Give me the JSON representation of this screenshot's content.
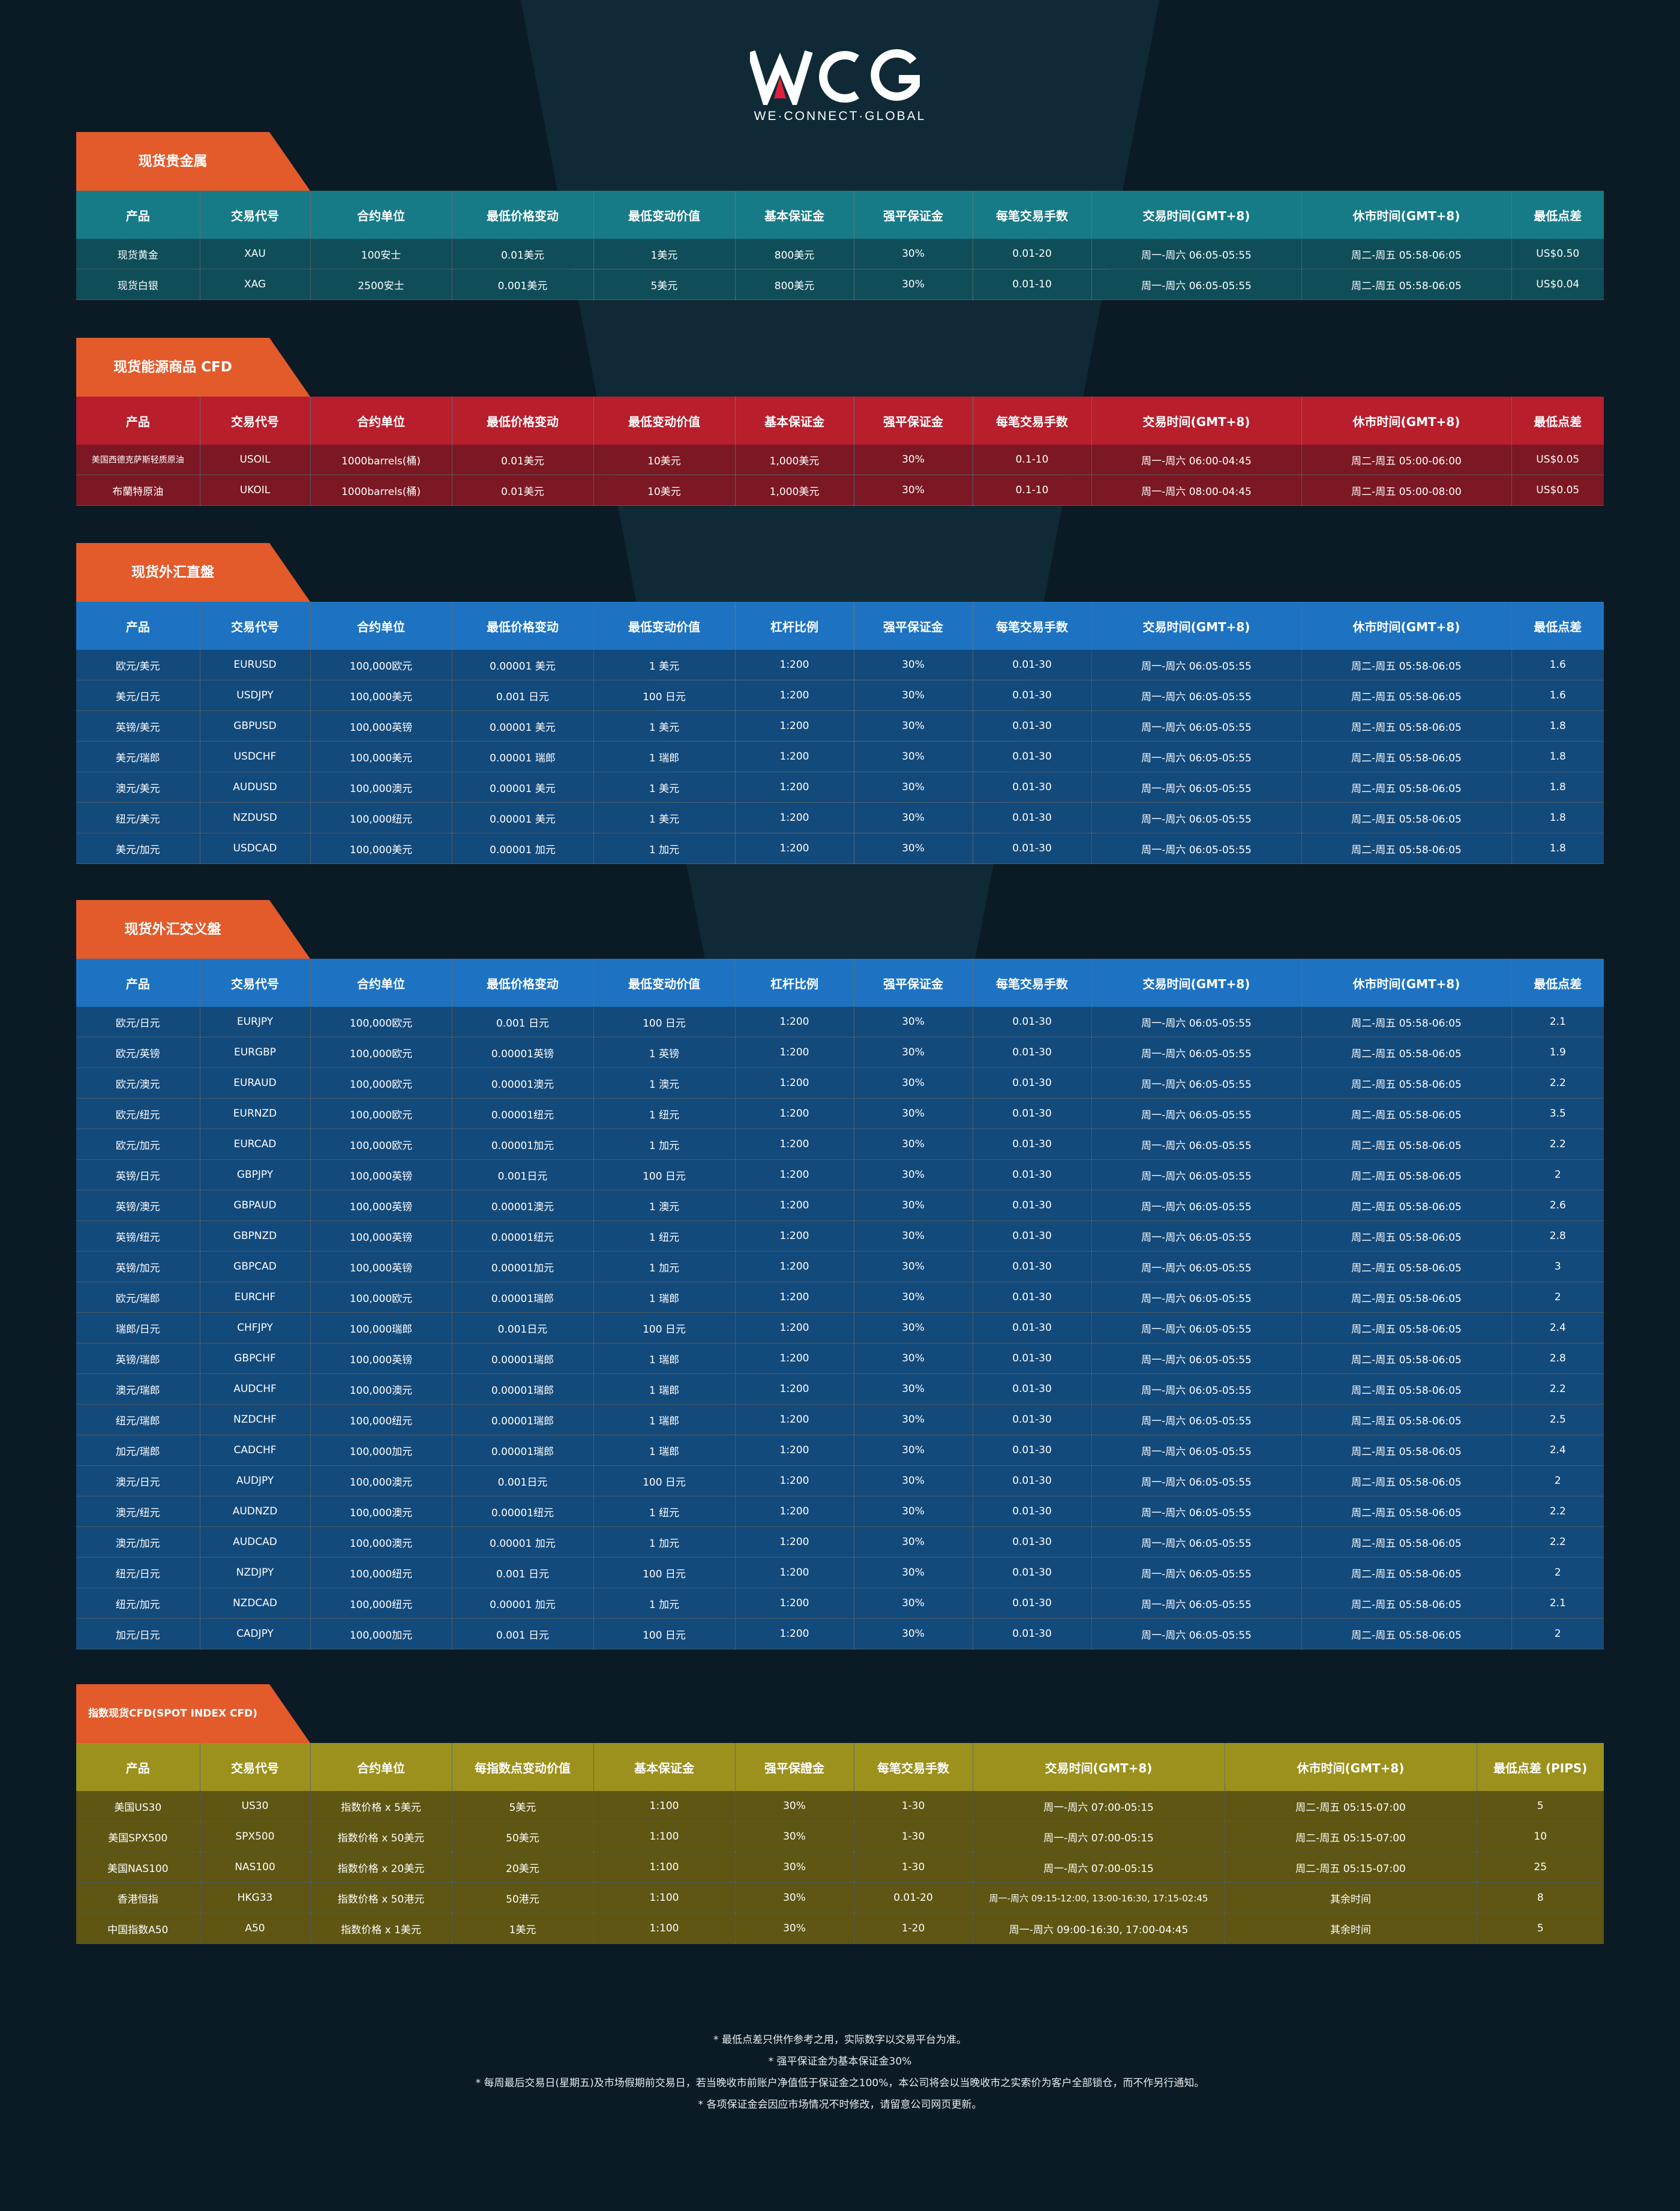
{
  "brand": {
    "logo_text": "WE·CONNECT·GLOBAL",
    "logo_icon": "wcg-logo",
    "colors": {
      "background": "#0b1b25",
      "tag": "#e35a2b",
      "gold_header": "#167b87",
      "energy_header": "#b81e2c",
      "fx_header": "#1d73c2",
      "index_header": "#9c911c"
    }
  },
  "sections": [
    {
      "key": "gold",
      "title": "现货贵金属",
      "headers": [
        "产品",
        "交易代号",
        "合约单位",
        "最低价格变动",
        "最低变动价值",
        "基本保证金",
        "强平保证金",
        "每笔交易手数",
        "交易时间(GMT+8)",
        "休市时间(GMT+8)",
        "最低点差"
      ],
      "rows": [
        [
          "现货黄金",
          "XAU",
          "100安士",
          "0.01美元",
          "1美元",
          "800美元",
          "30%",
          "0.01-20",
          "周一-周六 06:05-05:55",
          "周二-周五 05:58-06:05",
          "US$0.50"
        ],
        [
          "现货白银",
          "XAG",
          "2500安士",
          "0.001美元",
          "5美元",
          "800美元",
          "30%",
          "0.01-10",
          "周一-周六 06:05-05:55",
          "周二-周五 05:58-06:05",
          "US$0.04"
        ]
      ]
    },
    {
      "key": "energy",
      "title": "现货能源商品 CFD",
      "headers": [
        "产品",
        "交易代号",
        "合约单位",
        "最低价格变动",
        "最低变动价值",
        "基本保证金",
        "强平保证金",
        "每笔交易手数",
        "交易时间(GMT+8)",
        "休市时间(GMT+8)",
        "最低点差"
      ],
      "rows": [
        [
          "美国西德克萨斯轻质原油",
          "USOIL",
          "1000barrels(桶)",
          "0.01美元",
          "10美元",
          "1,000美元",
          "30%",
          "0.1-10",
          "周一-周六 06:00-04:45",
          "周二-周五 05:00-06:00",
          "US$0.05"
        ],
        [
          "布蘭特原油",
          "UKOIL",
          "1000barrels(桶)",
          "0.01美元",
          "10美元",
          "1,000美元",
          "30%",
          "0.1-10",
          "周一-周六 08:00-04:45",
          "周二-周五 05:00-08:00",
          "US$0.05"
        ]
      ]
    },
    {
      "key": "fx",
      "title": "现货外汇直盤",
      "headers": [
        "产品",
        "交易代号",
        "合约单位",
        "最低价格变动",
        "最低变动价值",
        "杠杆比例",
        "强平保证金",
        "每笔交易手数",
        "交易时间(GMT+8)",
        "休市时间(GMT+8)",
        "最低点差"
      ],
      "rows": [
        [
          "欧元/美元",
          "EURUSD",
          "100,000欧元",
          "0.00001 美元",
          "1 美元",
          "1:200",
          "30%",
          "0.01-30",
          "周一-周六 06:05-05:55",
          "周二-周五 05:58-06:05",
          "1.6"
        ],
        [
          "美元/日元",
          "USDJPY",
          "100,000美元",
          "0.001 日元",
          "100 日元",
          "1:200",
          "30%",
          "0.01-30",
          "周一-周六 06:05-05:55",
          "周二-周五 05:58-06:05",
          "1.6"
        ],
        [
          "英镑/美元",
          "GBPUSD",
          "100,000英镑",
          "0.00001 美元",
          "1 美元",
          "1:200",
          "30%",
          "0.01-30",
          "周一-周六 06:05-05:55",
          "周二-周五 05:58-06:05",
          "1.8"
        ],
        [
          "美元/瑞郎",
          "USDCHF",
          "100,000美元",
          "0.00001 瑞郎",
          "1 瑞郎",
          "1:200",
          "30%",
          "0.01-30",
          "周一-周六 06:05-05:55",
          "周二-周五 05:58-06:05",
          "1.8"
        ],
        [
          "澳元/美元",
          "AUDUSD",
          "100,000澳元",
          "0.00001 美元",
          "1 美元",
          "1:200",
          "30%",
          "0.01-30",
          "周一-周六 06:05-05:55",
          "周二-周五 05:58-06:05",
          "1.8"
        ],
        [
          "纽元/美元",
          "NZDUSD",
          "100,000纽元",
          "0.00001 美元",
          "1 美元",
          "1:200",
          "30%",
          "0.01-30",
          "周一-周六 06:05-05:55",
          "周二-周五 05:58-06:05",
          "1.8"
        ],
        [
          "美元/加元",
          "USDCAD",
          "100,000美元",
          "0.00001 加元",
          "1 加元",
          "1:200",
          "30%",
          "0.01-30",
          "周一-周六 06:05-05:55",
          "周二-周五 05:58-06:05",
          "1.8"
        ]
      ]
    },
    {
      "key": "fx",
      "title": "现货外汇交义盤",
      "headers": [
        "产品",
        "交易代号",
        "合约单位",
        "最低价格变动",
        "最低变动价值",
        "杠杆比例",
        "强平保证金",
        "每笔交易手数",
        "交易时间(GMT+8)",
        "休市时间(GMT+8)",
        "最低点差"
      ],
      "rows": [
        [
          "欧元/日元",
          "EURJPY",
          "100,000欧元",
          "0.001 日元",
          "100 日元",
          "1:200",
          "30%",
          "0.01-30",
          "周一-周六 06:05-05:55",
          "周二-周五 05:58-06:05",
          "2.1"
        ],
        [
          "欧元/英镑",
          "EURGBP",
          "100,000欧元",
          "0.00001英镑",
          "1 英镑",
          "1:200",
          "30%",
          "0.01-30",
          "周一-周六 06:05-05:55",
          "周二-周五 05:58-06:05",
          "1.9"
        ],
        [
          "欧元/澳元",
          "EURAUD",
          "100,000欧元",
          "0.00001澳元",
          "1 澳元",
          "1:200",
          "30%",
          "0.01-30",
          "周一-周六 06:05-05:55",
          "周二-周五 05:58-06:05",
          "2.2"
        ],
        [
          "欧元/纽元",
          "EURNZD",
          "100,000欧元",
          "0.00001纽元",
          "1 纽元",
          "1:200",
          "30%",
          "0.01-30",
          "周一-周六 06:05-05:55",
          "周二-周五 05:58-06:05",
          "3.5"
        ],
        [
          "欧元/加元",
          "EURCAD",
          "100,000欧元",
          "0.00001加元",
          "1 加元",
          "1:200",
          "30%",
          "0.01-30",
          "周一-周六 06:05-05:55",
          "周二-周五 05:58-06:05",
          "2.2"
        ],
        [
          "英镑/日元",
          "GBPJPY",
          "100,000英镑",
          "0.001日元",
          "100 日元",
          "1:200",
          "30%",
          "0.01-30",
          "周一-周六 06:05-05:55",
          "周二-周五 05:58-06:05",
          "2"
        ],
        [
          "英镑/澳元",
          "GBPAUD",
          "100,000英镑",
          "0.00001澳元",
          "1 澳元",
          "1:200",
          "30%",
          "0.01-30",
          "周一-周六 06:05-05:55",
          "周二-周五 05:58-06:05",
          "2.6"
        ],
        [
          "英镑/纽元",
          "GBPNZD",
          "100,000英镑",
          "0.00001纽元",
          "1 纽元",
          "1:200",
          "30%",
          "0.01-30",
          "周一-周六 06:05-05:55",
          "周二-周五 05:58-06:05",
          "2.8"
        ],
        [
          "英镑/加元",
          "GBPCAD",
          "100,000英镑",
          "0.00001加元",
          "1 加元",
          "1:200",
          "30%",
          "0.01-30",
          "周一-周六 06:05-05:55",
          "周二-周五 05:58-06:05",
          "3"
        ],
        [
          "欧元/瑞郎",
          "EURCHF",
          "100,000欧元",
          "0.00001瑞郎",
          "1 瑞郎",
          "1:200",
          "30%",
          "0.01-30",
          "周一-周六 06:05-05:55",
          "周二-周五 05:58-06:05",
          "2"
        ],
        [
          "瑞郎/日元",
          "CHFJPY",
          "100,000瑞郎",
          "0.001日元",
          "100 日元",
          "1:200",
          "30%",
          "0.01-30",
          "周一-周六 06:05-05:55",
          "周二-周五 05:58-06:05",
          "2.4"
        ],
        [
          "英镑/瑞郎",
          "GBPCHF",
          "100,000英镑",
          "0.00001瑞郎",
          "1 瑞郎",
          "1:200",
          "30%",
          "0.01-30",
          "周一-周六 06:05-05:55",
          "周二-周五 05:58-06:05",
          "2.8"
        ],
        [
          "澳元/瑞郎",
          "AUDCHF",
          "100,000澳元",
          "0.00001瑞郎",
          "1 瑞郎",
          "1:200",
          "30%",
          "0.01-30",
          "周一-周六 06:05-05:55",
          "周二-周五 05:58-06:05",
          "2.2"
        ],
        [
          "纽元/瑞郎",
          "NZDCHF",
          "100,000纽元",
          "0.00001瑞郎",
          "1 瑞郎",
          "1:200",
          "30%",
          "0.01-30",
          "周一-周六 06:05-05:55",
          "周二-周五 05:58-06:05",
          "2.5"
        ],
        [
          "加元/瑞郎",
          "CADCHF",
          "100,000加元",
          "0.00001瑞郎",
          "1 瑞郎",
          "1:200",
          "30%",
          "0.01-30",
          "周一-周六 06:05-05:55",
          "周二-周五 05:58-06:05",
          "2.4"
        ],
        [
          "澳元/日元",
          "AUDJPY",
          "100,000澳元",
          "0.001日元",
          "100 日元",
          "1:200",
          "30%",
          "0.01-30",
          "周一-周六 06:05-05:55",
          "周二-周五 05:58-06:05",
          "2"
        ],
        [
          "澳元/纽元",
          "AUDNZD",
          "100,000澳元",
          "0.00001纽元",
          "1 纽元",
          "1:200",
          "30%",
          "0.01-30",
          "周一-周六 06:05-05:55",
          "周二-周五 05:58-06:05",
          "2.2"
        ],
        [
          "澳元/加元",
          "AUDCAD",
          "100,000澳元",
          "0.00001 加元",
          "1 加元",
          "1:200",
          "30%",
          "0.01-30",
          "周一-周六 06:05-05:55",
          "周二-周五 05:58-06:05",
          "2.2"
        ],
        [
          "纽元/日元",
          "NZDJPY",
          "100,000纽元",
          "0.001 日元",
          "100 日元",
          "1:200",
          "30%",
          "0.01-30",
          "周一-周六 06:05-05:55",
          "周二-周五 05:58-06:05",
          "2"
        ],
        [
          "纽元/加元",
          "NZDCAD",
          "100,000纽元",
          "0.00001 加元",
          "1 加元",
          "1:200",
          "30%",
          "0.01-30",
          "周一-周六 06:05-05:55",
          "周二-周五 05:58-06:05",
          "2.1"
        ],
        [
          "加元/日元",
          "CADJPY",
          "100,000加元",
          "0.001 日元",
          "100 日元",
          "1:200",
          "30%",
          "0.01-30",
          "周一-周六 06:05-05:55",
          "周二-周五 05:58-06:05",
          "2"
        ]
      ]
    },
    {
      "key": "idx",
      "title": "指数现货CFD(SPOT INDEX CFD)",
      "headers": [
        "产品",
        "交易代号",
        "合约单位",
        "每指数点变动价值",
        "基本保证金",
        "强平保證金",
        "每笔交易手数",
        "交易时间(GMT+8)",
        "休市时间(GMT+8)",
        "最低点差 (PIPS)"
      ],
      "rows": [
        [
          "美国US30",
          "US30",
          "指数价格 x 5美元",
          "5美元",
          "1:100",
          "30%",
          "1-30",
          "周一-周六 07:00-05:15",
          "周二-周五 05:15-07:00",
          "5"
        ],
        [
          "美国SPX500",
          "SPX500",
          "指数价格 x 50美元",
          "50美元",
          "1:100",
          "30%",
          "1-30",
          "周一-周六 07:00-05:15",
          "周二-周五 05:15-07:00",
          "10"
        ],
        [
          "美国NAS100",
          "NAS100",
          "指数价格 x 20美元",
          "20美元",
          "1:100",
          "30%",
          "1-30",
          "周一-周六 07:00-05:15",
          "周二-周五 05:15-07:00",
          "25"
        ],
        [
          "香港恒指",
          "HKG33",
          "指数价格 x 50港元",
          "50港元",
          "1:100",
          "30%",
          "0.01-20",
          "周一-周六 09:15-12:00, 13:00-16:30, 17:15-02:45",
          "其余时间",
          "8"
        ],
        [
          "中国指数A50",
          "A50",
          "指数价格 x 1美元",
          "1美元",
          "1:100",
          "30%",
          "1-20",
          "周一-周六 09:00-16:30, 17:00-04:45",
          "其余时间",
          "5"
        ]
      ]
    }
  ],
  "notes": [
    "* 最低点差只供作参考之用，实际数字以交易平台为准。",
    "* 强平保证金为基本保证金30%",
    "* 每周最后交易日(星期五)及市场假期前交易日，若当晚收市前账户净值低于保证金之100%，本公司将会以当晚收市之实索价为客户全部锁仓，而不作另行通知。",
    "* 各项保证金会因应市场情况不时修改，请留意公司网页更新。"
  ]
}
